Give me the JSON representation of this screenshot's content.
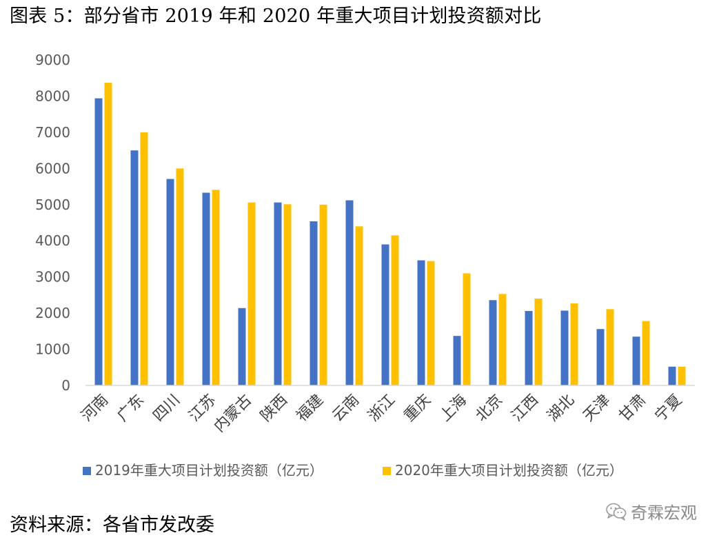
{
  "header": {
    "title": "图表 5：部分省市 2019 年和 2020 年重大项目计划投资额对比"
  },
  "footer": {
    "source": "资料来源：各省市发改委",
    "watermark": "奇霖宏观",
    "watermark_icon": "wechat-icon"
  },
  "chart_data": {
    "type": "bar",
    "title": "",
    "xlabel": "",
    "ylabel": "",
    "ylim": [
      0,
      9000
    ],
    "yticks": [
      0,
      1000,
      2000,
      3000,
      4000,
      5000,
      6000,
      7000,
      8000,
      9000
    ],
    "grid": false,
    "legend_position": "bottom",
    "categories": [
      "河南",
      "广东",
      "四川",
      "江苏",
      "内蒙古",
      "陕西",
      "福建",
      "云南",
      "浙江",
      "重庆",
      "上海",
      "北京",
      "江西",
      "湖北",
      "天津",
      "甘肃",
      "宁夏"
    ],
    "series": [
      {
        "name": "2019年重大项目计划投资额（亿元）",
        "color": "#4472C4",
        "values": [
          7940,
          6500,
          5710,
          5330,
          2140,
          5060,
          4540,
          5120,
          3900,
          3460,
          1370,
          2360,
          2060,
          2070,
          1560,
          1350,
          520
        ]
      },
      {
        "name": "2020年重大项目计划投资额（亿元）",
        "color": "#FFC000",
        "values": [
          8370,
          7000,
          6000,
          5410,
          5060,
          5010,
          5000,
          4400,
          4150,
          3440,
          3100,
          2530,
          2400,
          2270,
          2110,
          1780,
          520
        ]
      }
    ]
  }
}
